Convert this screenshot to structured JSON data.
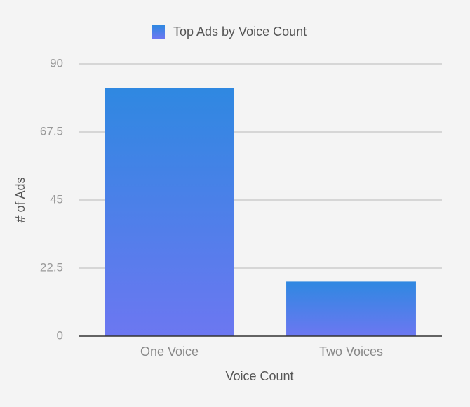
{
  "chart_data": {
    "type": "bar",
    "series": [
      {
        "name": "Top Ads by Voice Count",
        "color": "#2f88e1",
        "gradient_to": "#6c77f1",
        "values": [
          82,
          18
        ]
      }
    ],
    "categories": [
      "One Voice",
      "Two Voices"
    ],
    "x_label": "Voice Count",
    "y_label": "# of Ads",
    "ylim": [
      0,
      90
    ],
    "yticks": [
      0,
      22.5,
      45,
      67.5,
      90
    ],
    "grid": true
  }
}
